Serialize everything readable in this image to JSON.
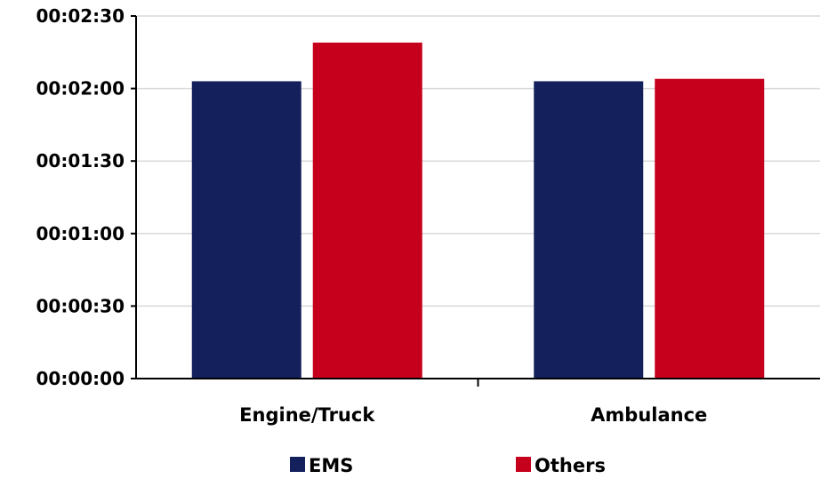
{
  "chart_data": {
    "type": "bar",
    "categories": [
      "Engine/Truck",
      "Ambulance"
    ],
    "series": [
      {
        "name": "EMS",
        "color": "#13205c",
        "values": [
          123,
          123
        ]
      },
      {
        "name": "Others",
        "color": "#c6001c",
        "values": [
          139,
          124
        ]
      }
    ],
    "y_unit": "seconds",
    "ylim": [
      0,
      150
    ],
    "y_ticks": [
      {
        "value": 0,
        "label": "00:00:00"
      },
      {
        "value": 30,
        "label": "00:00:30"
      },
      {
        "value": 60,
        "label": "00:01:00"
      },
      {
        "value": 90,
        "label": "00:01:30"
      },
      {
        "value": 120,
        "label": "00:02:00"
      },
      {
        "value": 150,
        "label": "00:02:30"
      }
    ],
    "grid": true,
    "legend_position": "bottom",
    "title": "",
    "xlabel": "",
    "ylabel": ""
  }
}
